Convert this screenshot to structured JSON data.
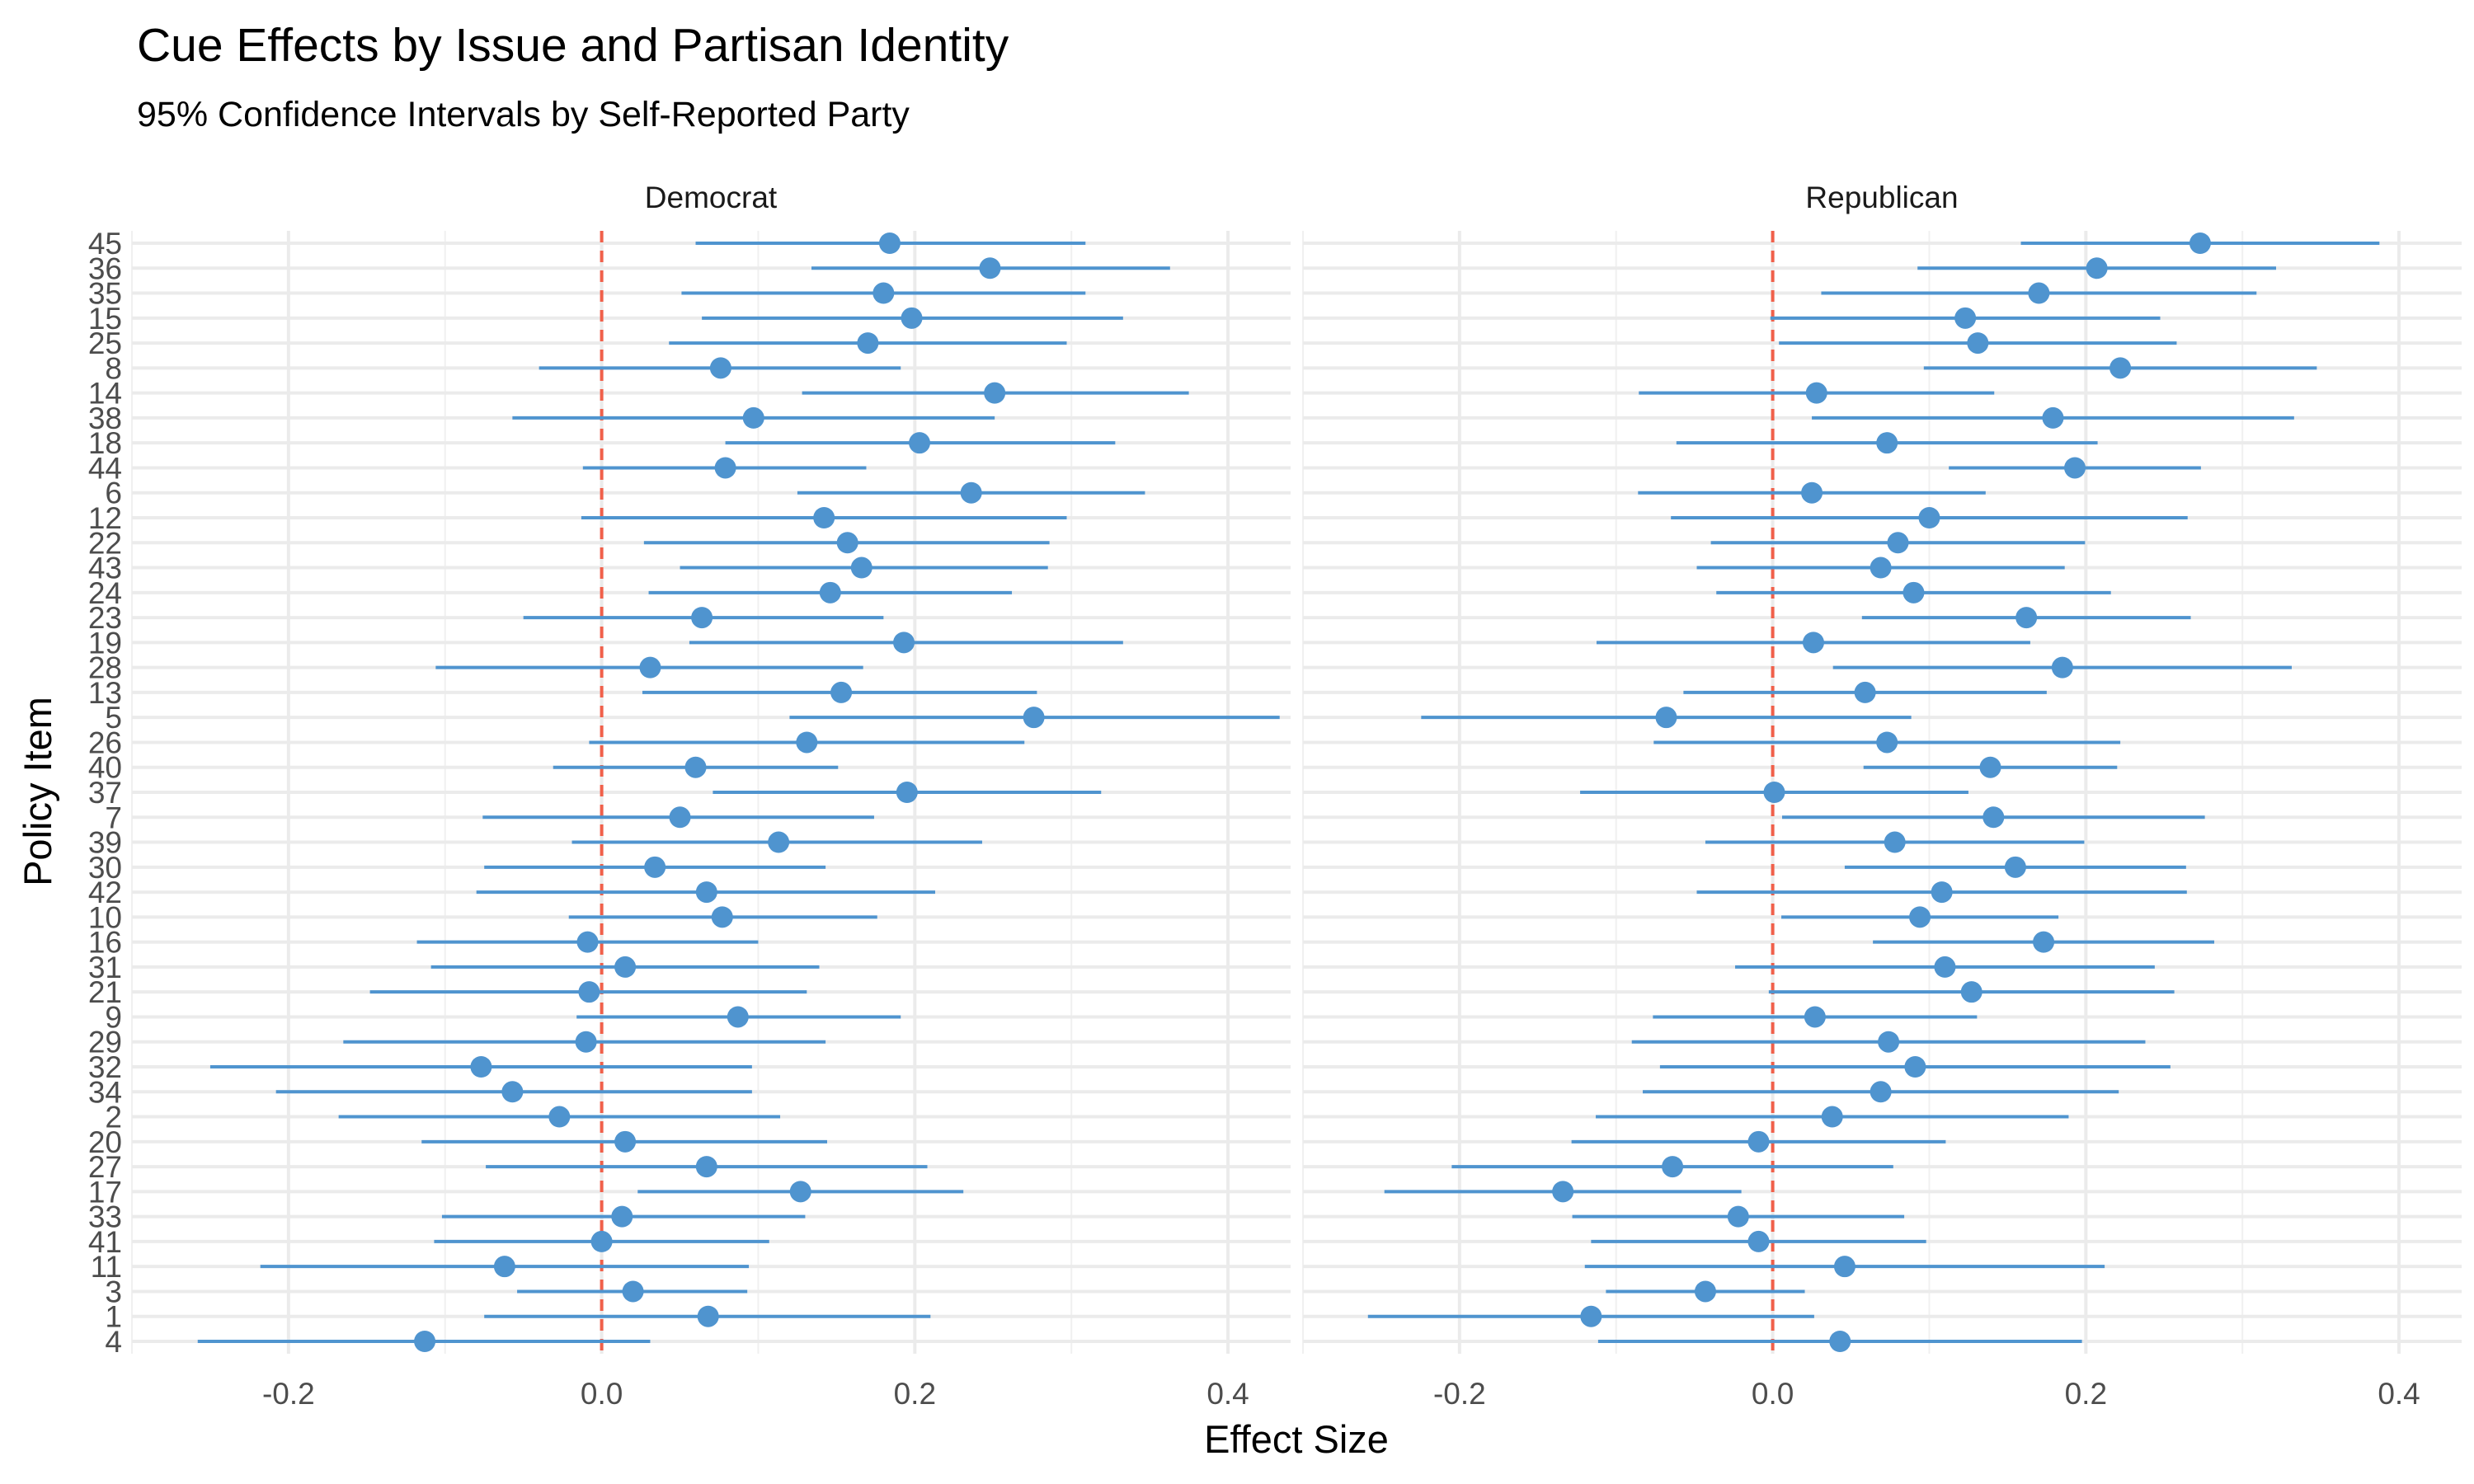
{
  "chart_data": {
    "type": "dot-interval",
    "title": "Cue Effects by Issue and Partisan Identity",
    "subtitle": "95% Confidence Intervals by Self-Reported Party",
    "xlabel": "Effect Size",
    "ylabel": "Policy Item",
    "xlim": [
      -0.3,
      0.44
    ],
    "x_ticks": [
      "-0.2",
      "0.0",
      "0.2",
      "0.4"
    ],
    "x_tick_values": [
      -0.2,
      0.0,
      0.2,
      0.4
    ],
    "reference_line": 0.0,
    "items": [
      "45",
      "36",
      "35",
      "15",
      "25",
      "8",
      "14",
      "38",
      "18",
      "44",
      "6",
      "12",
      "22",
      "43",
      "24",
      "23",
      "19",
      "28",
      "13",
      "5",
      "26",
      "40",
      "37",
      "7",
      "39",
      "30",
      "42",
      "10",
      "16",
      "31",
      "21",
      "9",
      "29",
      "32",
      "34",
      "2",
      "20",
      "27",
      "17",
      "33",
      "41",
      "11",
      "3",
      "1",
      "4"
    ],
    "panels": [
      {
        "name": "Democrat",
        "estimate": [
          0.184,
          0.248,
          0.18,
          0.198,
          0.17,
          0.076,
          0.251,
          0.097,
          0.203,
          0.079,
          0.236,
          0.142,
          0.157,
          0.166,
          0.146,
          0.064,
          0.193,
          0.031,
          0.153,
          0.276,
          0.131,
          0.06,
          0.195,
          0.05,
          0.113,
          0.034,
          0.067,
          0.077,
          -0.009,
          0.015,
          -0.008,
          0.087,
          -0.01,
          -0.077,
          -0.057,
          -0.027,
          0.015,
          0.067,
          0.127,
          0.013,
          0.0,
          -0.062,
          0.02,
          0.068,
          -0.113
        ],
        "lower": [
          0.06,
          0.134,
          0.051,
          0.064,
          0.043,
          -0.04,
          0.128,
          -0.057,
          0.079,
          -0.012,
          0.125,
          -0.013,
          0.027,
          0.05,
          0.03,
          -0.05,
          0.056,
          -0.106,
          0.026,
          0.12,
          -0.008,
          -0.031,
          0.071,
          -0.076,
          -0.019,
          -0.075,
          -0.08,
          -0.021,
          -0.118,
          -0.109,
          -0.148,
          -0.016,
          -0.165,
          -0.25,
          -0.208,
          -0.168,
          -0.115,
          -0.074,
          0.023,
          -0.102,
          -0.107,
          -0.218,
          -0.054,
          -0.075,
          -0.258
        ],
        "upper": [
          0.309,
          0.363,
          0.309,
          0.333,
          0.297,
          0.191,
          0.375,
          0.251,
          0.328,
          0.169,
          0.347,
          0.297,
          0.286,
          0.285,
          0.262,
          0.18,
          0.333,
          0.167,
          0.278,
          0.433,
          0.27,
          0.151,
          0.319,
          0.174,
          0.243,
          0.143,
          0.213,
          0.176,
          0.1,
          0.139,
          0.131,
          0.191,
          0.143,
          0.096,
          0.096,
          0.114,
          0.144,
          0.208,
          0.231,
          0.13,
          0.107,
          0.094,
          0.093,
          0.21,
          0.031
        ]
      },
      {
        "name": "Republican",
        "estimate": [
          0.273,
          0.207,
          0.17,
          0.123,
          0.131,
          0.222,
          0.028,
          0.179,
          0.073,
          0.193,
          0.025,
          0.1,
          0.08,
          0.069,
          0.09,
          0.162,
          0.026,
          0.185,
          0.059,
          -0.068,
          0.073,
          0.139,
          0.001,
          0.141,
          0.078,
          0.155,
          0.108,
          0.094,
          0.173,
          0.11,
          0.127,
          0.027,
          0.074,
          0.091,
          0.069,
          0.038,
          -0.009,
          -0.064,
          -0.134,
          -0.022,
          -0.009,
          0.046,
          -0.043,
          -0.116,
          0.043
        ]
      }
    ]
  }
}
